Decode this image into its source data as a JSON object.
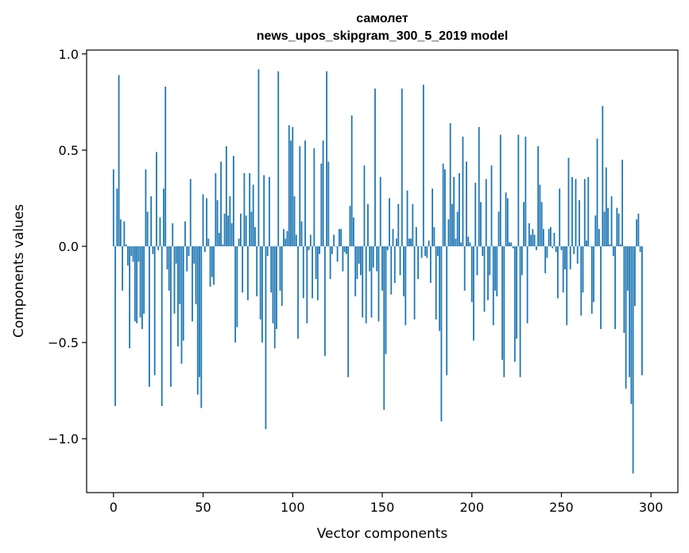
{
  "chart_data": {
    "type": "bar",
    "title": "самолет",
    "subtitle": "news_upos_skipgram_300_5_2019 model",
    "xlabel": "Vector components",
    "ylabel": "Components values",
    "xlim": [
      -15,
      315
    ],
    "ylim": [
      -1.28,
      1.02
    ],
    "xticks": [
      0,
      50,
      100,
      150,
      200,
      250,
      300
    ],
    "xtick_labels": [
      "0",
      "50",
      "100",
      "150",
      "200",
      "250",
      "300"
    ],
    "yticks": [
      -1.0,
      -0.5,
      0.0,
      0.5,
      1.0
    ],
    "ytick_labels": [
      "−1.0",
      "−0.5",
      "0.0",
      "0.5",
      "1.0"
    ],
    "grid": false,
    "bar_color": "#1f77b4",
    "values": [
      0.4,
      -0.83,
      0.3,
      0.89,
      0.14,
      -0.23,
      0.13,
      0.01,
      -0.1,
      -0.53,
      -0.05,
      -0.08,
      -0.39,
      -0.4,
      -0.08,
      -0.37,
      -0.43,
      -0.35,
      0.4,
      0.18,
      -0.73,
      0.26,
      -0.04,
      -0.67,
      0.49,
      -0.02,
      0.15,
      -0.83,
      0.3,
      0.83,
      -0.12,
      -0.23,
      -0.73,
      0.12,
      -0.35,
      -0.09,
      -0.52,
      -0.3,
      -0.61,
      -0.49,
      0.13,
      -0.13,
      -0.05,
      0.35,
      -0.39,
      -0.09,
      -0.3,
      -0.77,
      -0.68,
      -0.84,
      0.27,
      -0.03,
      0.25,
      0.04,
      -0.21,
      -0.16,
      -0.2,
      0.38,
      0.24,
      0.07,
      0.44,
      0.01,
      0.17,
      0.52,
      0.16,
      0.26,
      0.12,
      0.47,
      -0.5,
      -0.42,
      0.04,
      0.17,
      -0.24,
      0.38,
      0.16,
      -0.28,
      0.38,
      0.18,
      0.32,
      0.1,
      -0.26,
      0.92,
      -0.38,
      -0.5,
      0.37,
      -0.95,
      -0.05,
      0.36,
      -0.24,
      -0.4,
      -0.53,
      -0.43,
      0.91,
      -0.23,
      -0.31,
      0.09,
      0.04,
      0.08,
      0.63,
      0.55,
      0.62,
      0.26,
      0.06,
      -0.48,
      0.52,
      0.13,
      -0.27,
      0.55,
      -0.4,
      -0.02,
      0.06,
      -0.27,
      0.51,
      -0.17,
      -0.28,
      -0.04,
      0.43,
      0.55,
      -0.57,
      0.91,
      0.44,
      -0.17,
      -0.04,
      0.06,
      0.0,
      -0.08,
      0.09,
      0.09,
      -0.13,
      -0.03,
      -0.04,
      -0.68,
      0.21,
      0.68,
      0.15,
      -0.26,
      -0.17,
      -0.09,
      -0.15,
      -0.37,
      0.42,
      -0.4,
      0.22,
      -0.13,
      -0.37,
      -0.11,
      0.82,
      -0.13,
      -0.39,
      0.36,
      -0.23,
      -0.85,
      -0.56,
      -0.02,
      0.25,
      -0.25,
      0.09,
      -0.19,
      0.04,
      0.22,
      -0.15,
      0.82,
      -0.26,
      -0.41,
      0.29,
      0.04,
      0.04,
      0.22,
      -0.38,
      0.1,
      -0.17,
      0.0,
      -0.06,
      0.84,
      -0.05,
      -0.06,
      0.03,
      -0.19,
      0.3,
      0.1,
      -0.38,
      -0.05,
      -0.44,
      -0.91,
      0.43,
      0.4,
      -0.67,
      0.14,
      0.64,
      0.22,
      0.36,
      0.04,
      0.18,
      0.38,
      0.02,
      0.57,
      -0.23,
      0.44,
      0.05,
      0.02,
      -0.29,
      -0.49,
      0.33,
      -0.15,
      0.62,
      0.23,
      -0.05,
      -0.34,
      0.35,
      -0.28,
      -0.15,
      0.42,
      -0.41,
      -0.23,
      -0.26,
      0.18,
      0.58,
      -0.59,
      -0.68,
      0.28,
      0.25,
      0.02,
      0.02,
      -0.01,
      -0.6,
      -0.48,
      0.58,
      -0.68,
      -0.15,
      0.23,
      0.57,
      -0.4,
      0.12,
      0.06,
      0.09,
      0.06,
      -0.02,
      0.52,
      0.32,
      0.23,
      0.09,
      -0.14,
      -0.06,
      0.09,
      0.1,
      -0.01,
      0.07,
      -0.03,
      -0.27,
      0.3,
      -0.02,
      -0.24,
      -0.12,
      -0.41,
      0.46,
      -0.12,
      0.36,
      -0.04,
      0.35,
      -0.09,
      0.24,
      -0.36,
      -0.24,
      0.35,
      0.03,
      0.36,
      0.0,
      -0.35,
      -0.29,
      0.16,
      0.56,
      0.09,
      -0.43,
      0.73,
      0.18,
      0.41,
      0.2,
      0.01,
      0.26,
      -0.05,
      -0.43,
      0.2,
      0.17,
      0.01,
      0.45,
      -0.45,
      -0.74,
      -0.23,
      -0.68,
      -0.82,
      -1.18,
      -0.31,
      0.14,
      0.17,
      -0.03,
      -0.67
    ]
  }
}
